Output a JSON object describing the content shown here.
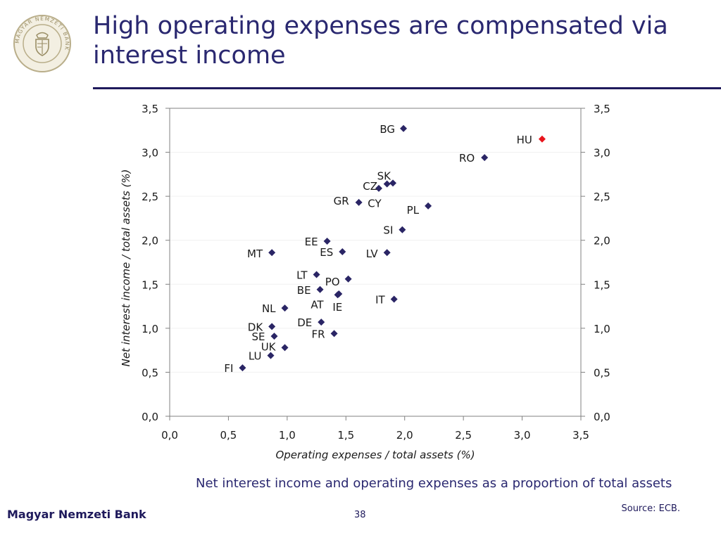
{
  "header": {
    "title": "High operating expenses are compensated via interest income",
    "logo_text": "MAGYAR NEMZETI BANK"
  },
  "caption": "Net interest income and operating expenses as a proportion of total assets",
  "source": "Source: ECB.",
  "footer": {
    "bank_name": "Magyar Nemzeti Bank",
    "page_number": "38"
  },
  "colors": {
    "marker": "#2a2565",
    "highlight": "#e8141c",
    "axis": "#808080",
    "text": "#1a1a1a"
  },
  "chart_data": {
    "type": "scatter",
    "title": "",
    "xlabel": "Operating expenses / total assets (%)",
    "ylabel": "Net interest income / total assets (%)",
    "xlim": [
      0,
      3.5
    ],
    "ylim": [
      0,
      3.5
    ],
    "x_ticks": [
      "0,0",
      "0,5",
      "1,0",
      "1,5",
      "2,0",
      "2,5",
      "3,0",
      "3,5"
    ],
    "y_ticks": [
      "0,0",
      "0,5",
      "1,0",
      "1,5",
      "2,0",
      "2,5",
      "3,0",
      "3,5"
    ],
    "points": [
      {
        "label": "BG",
        "x": 1.99,
        "y": 3.27
      },
      {
        "label": "HU",
        "x": 3.17,
        "y": 3.15,
        "highlight": true
      },
      {
        "label": "RO",
        "x": 2.68,
        "y": 2.94
      },
      {
        "label": "SK",
        "x": 1.9,
        "y": 2.65
      },
      {
        "label": "CZ",
        "x": 1.78,
        "y": 2.59
      },
      {
        "label": "CY",
        "x": 1.85,
        "y": 2.64
      },
      {
        "label": "GR",
        "x": 1.61,
        "y": 2.43
      },
      {
        "label": "PL",
        "x": 2.2,
        "y": 2.39
      },
      {
        "label": "SI",
        "x": 1.98,
        "y": 2.12
      },
      {
        "label": "EE",
        "x": 1.34,
        "y": 1.99
      },
      {
        "label": "ES",
        "x": 1.47,
        "y": 1.87
      },
      {
        "label": "LV",
        "x": 1.85,
        "y": 1.86
      },
      {
        "label": "MT",
        "x": 0.87,
        "y": 1.86
      },
      {
        "label": "LT",
        "x": 1.25,
        "y": 1.61
      },
      {
        "label": "PO",
        "x": 1.52,
        "y": 1.56
      },
      {
        "label": "BE",
        "x": 1.28,
        "y": 1.44
      },
      {
        "label": "AT",
        "x": 1.43,
        "y": 1.38
      },
      {
        "label": "IE",
        "x": 1.44,
        "y": 1.39
      },
      {
        "label": "IT",
        "x": 1.91,
        "y": 1.33
      },
      {
        "label": "NL",
        "x": 0.98,
        "y": 1.23
      },
      {
        "label": "DE",
        "x": 1.29,
        "y": 1.07
      },
      {
        "label": "DK",
        "x": 0.87,
        "y": 1.02
      },
      {
        "label": "FR",
        "x": 1.4,
        "y": 0.94
      },
      {
        "label": "SE",
        "x": 0.89,
        "y": 0.91
      },
      {
        "label": "UK",
        "x": 0.98,
        "y": 0.78
      },
      {
        "label": "LU",
        "x": 0.86,
        "y": 0.69
      },
      {
        "label": "FI",
        "x": 0.62,
        "y": 0.55
      }
    ]
  }
}
